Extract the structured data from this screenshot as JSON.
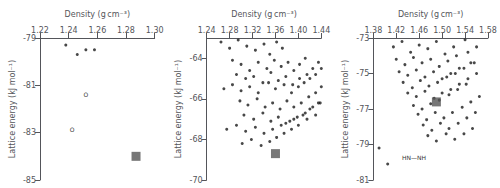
{
  "chart_data": [
    {
      "type": "scatter",
      "xlabel": "Density (g cm⁻³)",
      "ylabel": "Lattice energy (kJ mol⁻¹)",
      "xlim": [
        1.22,
        1.3
      ],
      "ylim": [
        -85,
        -79
      ],
      "xticks": [
        1.22,
        1.24,
        1.26,
        1.28,
        {
          "value": 1.3,
          "label": "1.30"
        }
      ],
      "yticks": [
        -85,
        -83,
        -81,
        -79
      ],
      "grid": false,
      "annotations": [
        "O",
        "O"
      ],
      "series": [
        {
          "color": "#1a1a1a",
          "marker": "dot",
          "x": [
            1.252,
            1.258,
            1.238,
            1.246
          ],
          "y": [
            -79.5,
            -79.5,
            -79.3,
            -79.7
          ]
        },
        {
          "color": "#555555",
          "marker": "square",
          "x": [
            1.287
          ],
          "y": [
            -84.0
          ]
        }
      ]
    },
    {
      "type": "scatter",
      "xlabel": "Density (g cm⁻³)",
      "ylabel": "Lattice energy (kJ mol⁻¹)",
      "xlim": [
        1.24,
        1.44
      ],
      "ylim": [
        -70,
        -63
      ],
      "xticks": [
        1.24,
        1.28,
        1.32,
        1.36,
        {
          "value": 1.4,
          "label": "1.40"
        },
        1.44
      ],
      "yticks": [
        -70,
        -68,
        -66,
        -64
      ],
      "grid": false,
      "series": [
        {
          "color": "#1a1a1a",
          "marker": "dot",
          "x": [
            1.265,
            1.28,
            1.295,
            1.31,
            1.325,
            1.34,
            1.35,
            1.362,
            1.372,
            1.285,
            1.3,
            1.315,
            1.33,
            1.345,
            1.358,
            1.37,
            1.382,
            1.392,
            1.402,
            1.412,
            1.292,
            1.308,
            1.322,
            1.338,
            1.352,
            1.365,
            1.378,
            1.39,
            1.402,
            1.415,
            1.425,
            1.435,
            1.27,
            1.285,
            1.3,
            1.315,
            1.33,
            1.348,
            1.36,
            1.375,
            1.388,
            1.4,
            1.41,
            1.42,
            1.43,
            1.44,
            1.298,
            1.312,
            1.328,
            1.342,
            1.355,
            1.368,
            1.38,
            1.392,
            1.405,
            1.418,
            1.43,
            1.44,
            1.305,
            1.322,
            1.338,
            1.352,
            1.365,
            1.378,
            1.392,
            1.408,
            1.42,
            1.435,
            1.275,
            1.292,
            1.308,
            1.325,
            1.34,
            1.355,
            1.37,
            1.385,
            1.398,
            1.412,
            1.425,
            1.438,
            1.302,
            1.318,
            1.335,
            1.35,
            1.362,
            1.375,
            1.388,
            1.4,
            1.415,
            1.43
          ],
          "y": [
            -63.2,
            -63.5,
            -63.1,
            -63.4,
            -63.6,
            -63.3,
            -63.8,
            -63.2,
            -63.5,
            -64.1,
            -64.3,
            -64.6,
            -64.2,
            -64.5,
            -64.1,
            -64.4,
            -64.2,
            -64.6,
            -64.3,
            -64.0,
            -64.8,
            -65.0,
            -64.9,
            -65.2,
            -64.7,
            -65.1,
            -64.9,
            -65.3,
            -65.0,
            -64.8,
            -64.5,
            -64.2,
            -65.5,
            -65.3,
            -65.6,
            -65.4,
            -65.7,
            -65.2,
            -65.5,
            -65.3,
            -65.7,
            -65.4,
            -65.2,
            -65.0,
            -64.8,
            -64.5,
            -66.1,
            -66.3,
            -66.0,
            -66.4,
            -66.2,
            -66.5,
            -66.1,
            -66.4,
            -66.2,
            -65.9,
            -65.7,
            -65.4,
            -66.8,
            -67.0,
            -66.7,
            -67.1,
            -66.9,
            -67.2,
            -67.0,
            -66.8,
            -66.5,
            -66.2,
            -67.5,
            -67.3,
            -67.6,
            -67.4,
            -67.7,
            -67.5,
            -67.3,
            -67.1,
            -66.9,
            -66.7,
            -66.4,
            -66.2,
            -68.2,
            -68.0,
            -68.3,
            -68.1,
            -67.9,
            -67.7,
            -67.5,
            -67.3,
            -67.0,
            -66.8
          ]
        },
        {
          "color": "#555555",
          "marker": "square",
          "x": [
            1.36
          ],
          "y": [
            -68.7
          ]
        }
      ]
    },
    {
      "type": "scatter",
      "xlabel": "Density (g cm⁻³)",
      "ylabel": "Lattice energy (kJ mol⁻¹)",
      "xlim": [
        1.38,
        1.58
      ],
      "ylim": [
        -81,
        -73
      ],
      "xticks": [
        1.38,
        1.42,
        1.46,
        {
          "value": 1.5,
          "label": "1.50"
        },
        1.54,
        1.58
      ],
      "yticks": [
        -81,
        -79,
        -77,
        -75,
        -73
      ],
      "grid": false,
      "annotations": [
        "HN—NH"
      ],
      "series": [
        {
          "color": "#1a1a1a",
          "marker": "dot",
          "x": [
            1.415,
            1.43,
            1.445,
            1.46,
            1.475,
            1.49,
            1.505,
            1.52,
            1.54,
            1.42,
            1.435,
            1.45,
            1.465,
            1.48,
            1.495,
            1.51,
            1.525,
            1.545,
            1.56,
            1.425,
            1.44,
            1.455,
            1.47,
            1.485,
            1.5,
            1.515,
            1.53,
            1.55,
            1.432,
            1.448,
            1.462,
            1.477,
            1.492,
            1.508,
            1.523,
            1.538,
            1.556,
            1.44,
            1.455,
            1.47,
            1.486,
            1.5,
            1.515,
            1.53,
            1.545,
            1.56,
            1.45,
            1.465,
            1.48,
            1.495,
            1.512,
            1.527,
            1.542,
            1.458,
            1.473,
            1.488,
            1.503,
            1.518,
            1.535,
            1.55,
            1.565,
            1.467,
            1.482,
            1.497,
            1.512,
            1.528,
            1.543,
            1.558,
            1.475,
            1.49,
            1.507,
            1.522,
            1.538,
            1.553,
            1.39,
            1.405
          ],
          "y": [
            -73.5,
            -73.2,
            -73.8,
            -73.4,
            -73.6,
            -73.2,
            -73.9,
            -73.5,
            -73.1,
            -74.2,
            -74.5,
            -74.1,
            -74.4,
            -74.2,
            -74.6,
            -74.3,
            -74.0,
            -73.8,
            -73.5,
            -74.9,
            -75.1,
            -74.8,
            -75.2,
            -74.9,
            -75.3,
            -75.0,
            -74.7,
            -74.4,
            -75.5,
            -75.8,
            -75.4,
            -75.7,
            -75.5,
            -75.2,
            -75.0,
            -74.7,
            -74.4,
            -76.1,
            -76.3,
            -76.0,
            -76.4,
            -76.1,
            -75.9,
            -75.6,
            -75.3,
            -75.0,
            -76.8,
            -77.0,
            -76.7,
            -76.5,
            -76.2,
            -75.9,
            -75.6,
            -77.3,
            -77.6,
            -77.2,
            -77.5,
            -77.2,
            -76.9,
            -76.6,
            -76.3,
            -77.9,
            -78.2,
            -77.8,
            -78.1,
            -77.8,
            -77.5,
            -77.2,
            -78.5,
            -78.8,
            -78.4,
            -78.7,
            -78.4,
            -78.1,
            -79.2,
            -80.1
          ]
        },
        {
          "color": "#555555",
          "marker": "square",
          "x": [
            1.49
          ],
          "y": [
            -76.6
          ]
        }
      ]
    }
  ]
}
